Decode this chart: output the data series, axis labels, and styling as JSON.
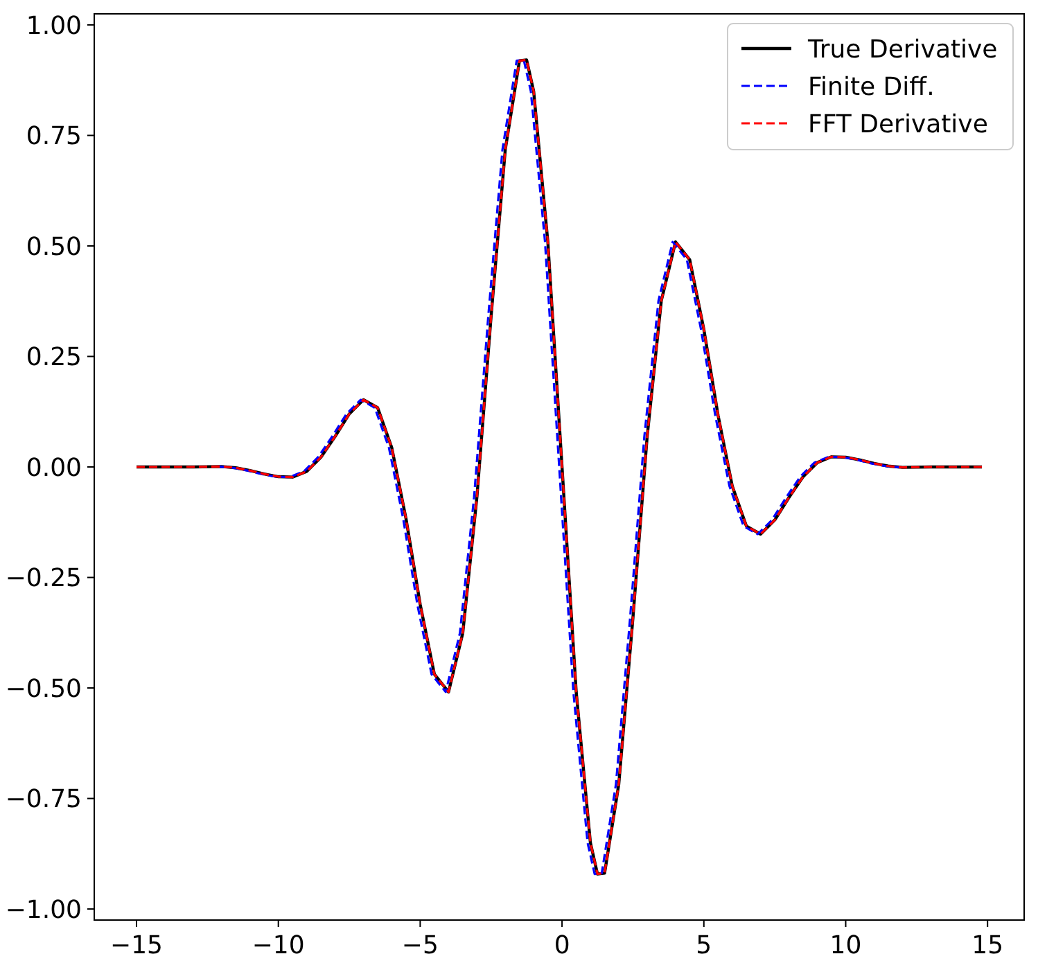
{
  "chart_data": {
    "type": "line",
    "xlim": [
      -16.49,
      16.29
    ],
    "ylim": [
      -1.025,
      1.025
    ],
    "xticks": [
      {
        "value": -15,
        "label": "−15"
      },
      {
        "value": -10,
        "label": "−10"
      },
      {
        "value": -5,
        "label": "−5"
      },
      0,
      5,
      10,
      15
    ],
    "yticks": [
      {
        "value": -1,
        "label": "−1.00"
      },
      {
        "value": -0.75,
        "label": "−0.75"
      },
      {
        "value": -0.5,
        "label": "−0.50"
      },
      {
        "value": -0.25,
        "label": "−0.25"
      },
      {
        "value": 0,
        "label": "0.00"
      },
      {
        "value": 0.25,
        "label": "0.25"
      },
      {
        "value": 0.5,
        "label": "0.50"
      },
      {
        "value": 0.75,
        "label": "0.75"
      },
      {
        "value": 1,
        "label": "1.00"
      }
    ],
    "x": [
      -15,
      -14,
      -13,
      -12,
      -11.5,
      -11,
      -10.5,
      -10,
      -9.5,
      -9,
      -8.5,
      -8,
      -7.5,
      -7,
      -6.5,
      -6,
      -5.5,
      -5,
      -4.5,
      -4,
      -3.5,
      -3,
      -2.5,
      -2,
      -1.5,
      -1.25,
      -1,
      -0.5,
      0,
      0.5,
      1,
      1.25,
      1.5,
      2,
      2.5,
      3,
      3.5,
      4,
      4.5,
      5,
      5.5,
      6,
      6.5,
      7,
      7.5,
      8,
      8.5,
      9,
      9.5,
      10,
      10.5,
      11,
      11.5,
      12,
      13,
      14,
      14.8
    ],
    "legend": "top right",
    "grid": false,
    "series": [
      {
        "name": "True Derivative",
        "color": "#000000",
        "line_style": "solid",
        "values": [
          0,
          0,
          0,
          0.001,
          -0.002,
          -0.008,
          -0.016,
          -0.022,
          -0.023,
          -0.01,
          0.022,
          0.069,
          0.12,
          0.152,
          0.134,
          0.043,
          -0.117,
          -0.311,
          -0.469,
          -0.509,
          -0.376,
          -0.068,
          0.341,
          0.718,
          0.919,
          0.921,
          0.85,
          0.509,
          0,
          -0.509,
          -0.85,
          -0.921,
          -0.919,
          -0.718,
          -0.341,
          0.068,
          0.376,
          0.509,
          0.469,
          0.311,
          0.117,
          -0.043,
          -0.134,
          -0.152,
          -0.12,
          -0.069,
          -0.022,
          0.01,
          0.023,
          0.022,
          0.016,
          0.008,
          0.002,
          -0.001,
          0,
          0,
          0
        ]
      },
      {
        "name": "Finite Diff.",
        "color": "#0000ff",
        "line_style": "dashed",
        "x": [
          -12.1,
          -11.6,
          -11.1,
          -10.6,
          -10.1,
          -9.6,
          -9.1,
          -8.6,
          -8.1,
          -7.6,
          -7.1,
          -6.6,
          -6.1,
          -5.6,
          -5.1,
          -4.6,
          -4.1,
          -3.6,
          -3.1,
          -2.6,
          -2.1,
          -1.6,
          -1.35,
          -1.1,
          -0.6,
          -0.1,
          0.4,
          0.9,
          1.15,
          1.4,
          1.9,
          2.4,
          2.9,
          3.4,
          3.9,
          4.4,
          4.9,
          5.4,
          5.9,
          6.4,
          6.9,
          7.4,
          7.9,
          8.4,
          8.9,
          9.4,
          9.9,
          10.4,
          10.9,
          11.4,
          11.9
        ],
        "values": [
          0.001,
          -0.002,
          -0.008,
          -0.016,
          -0.022,
          -0.023,
          -0.01,
          0.022,
          0.069,
          0.12,
          0.152,
          0.134,
          0.043,
          -0.117,
          -0.311,
          -0.469,
          -0.509,
          -0.376,
          -0.068,
          0.341,
          0.718,
          0.919,
          0.921,
          0.85,
          0.509,
          0,
          -0.509,
          -0.85,
          -0.921,
          -0.919,
          -0.718,
          -0.341,
          0.068,
          0.376,
          0.509,
          0.469,
          0.311,
          0.117,
          -0.043,
          -0.134,
          -0.152,
          -0.12,
          -0.069,
          -0.022,
          0.01,
          0.023,
          0.022,
          0.016,
          0.008,
          0.002,
          -0.001
        ]
      },
      {
        "name": "FFT Derivative",
        "color": "#ff0000",
        "line_style": "dashed",
        "values": [
          0,
          0,
          0,
          0.001,
          -0.002,
          -0.008,
          -0.016,
          -0.022,
          -0.023,
          -0.01,
          0.022,
          0.069,
          0.12,
          0.152,
          0.134,
          0.043,
          -0.117,
          -0.311,
          -0.469,
          -0.509,
          -0.376,
          -0.068,
          0.341,
          0.718,
          0.919,
          0.921,
          0.85,
          0.509,
          0,
          -0.509,
          -0.85,
          -0.921,
          -0.919,
          -0.718,
          -0.341,
          0.068,
          0.376,
          0.509,
          0.469,
          0.311,
          0.117,
          -0.043,
          -0.134,
          -0.152,
          -0.12,
          -0.069,
          -0.022,
          0.01,
          0.023,
          0.022,
          0.016,
          0.008,
          0.002,
          -0.001,
          0,
          0,
          0
        ]
      }
    ]
  }
}
